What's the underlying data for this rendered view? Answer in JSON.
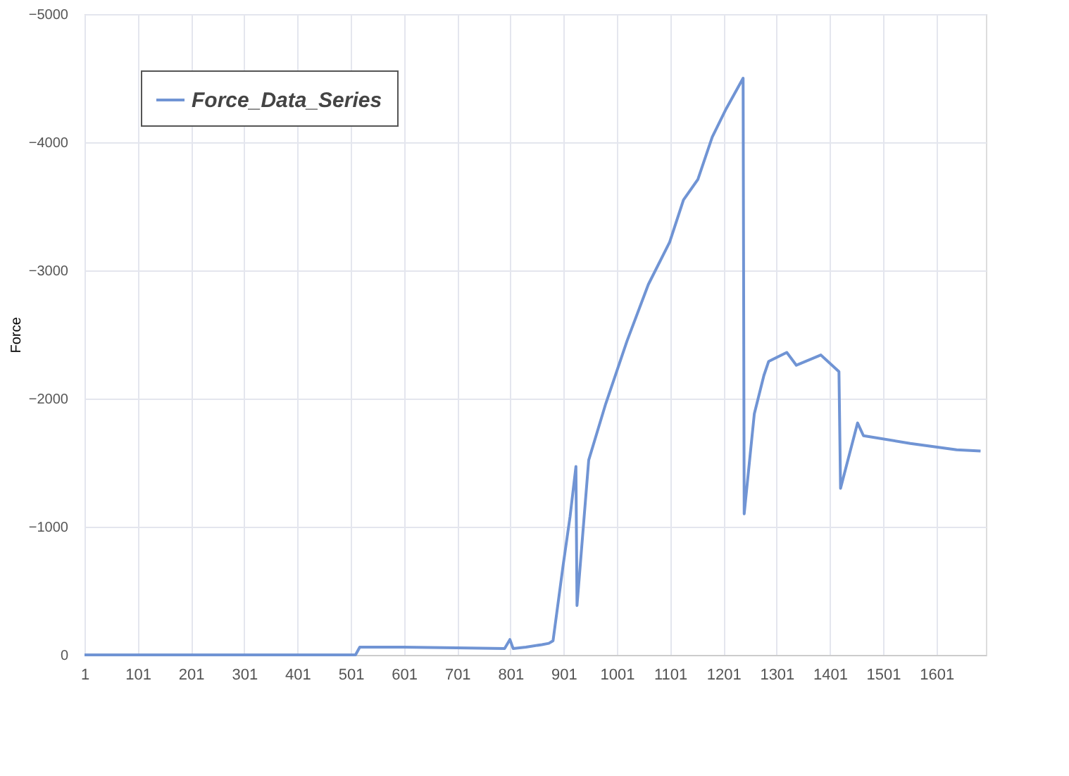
{
  "chart_data": {
    "type": "line",
    "ylabel": "Force",
    "xlim": [
      1,
      1694
    ],
    "xticks": [
      1,
      101,
      201,
      301,
      401,
      501,
      601,
      701,
      801,
      901,
      1001,
      1101,
      1201,
      1301,
      1401,
      1501,
      1601
    ],
    "ylim": [
      0,
      -5000
    ],
    "yticks": [
      0,
      -1000,
      -2000,
      -3000,
      -4000,
      -5000
    ],
    "grid": true,
    "legend": "top left",
    "line_style": "solid",
    "marker": "none",
    "series": [
      {
        "name": "Force_Data_Series",
        "color": "#7094d4",
        "x": [
          1,
          100,
          200,
          300,
          400,
          510,
          518,
          600,
          700,
          790,
          800,
          806,
          830,
          860,
          873,
          881,
          900,
          913,
          924,
          926,
          948,
          980,
          1020,
          1060,
          1100,
          1126,
          1153,
          1180,
          1206,
          1238,
          1240,
          1259,
          1277,
          1286,
          1320,
          1338,
          1384,
          1418,
          1421,
          1453,
          1464,
          1552,
          1639,
          1684
        ],
        "values": [
          0,
          0,
          0,
          0,
          0,
          0,
          -60,
          -60,
          -55,
          -50,
          -120,
          -50,
          -60,
          -80,
          -90,
          -110,
          -700,
          -1080,
          -1470,
          -385,
          -1520,
          -1960,
          -2450,
          -2890,
          -3220,
          -3550,
          -3710,
          -4040,
          -4260,
          -4500,
          -1100,
          -1880,
          -2180,
          -2290,
          -2360,
          -2260,
          -2340,
          -2210,
          -1300,
          -1810,
          -1710,
          -1650,
          -1600,
          -1590
        ]
      }
    ]
  }
}
